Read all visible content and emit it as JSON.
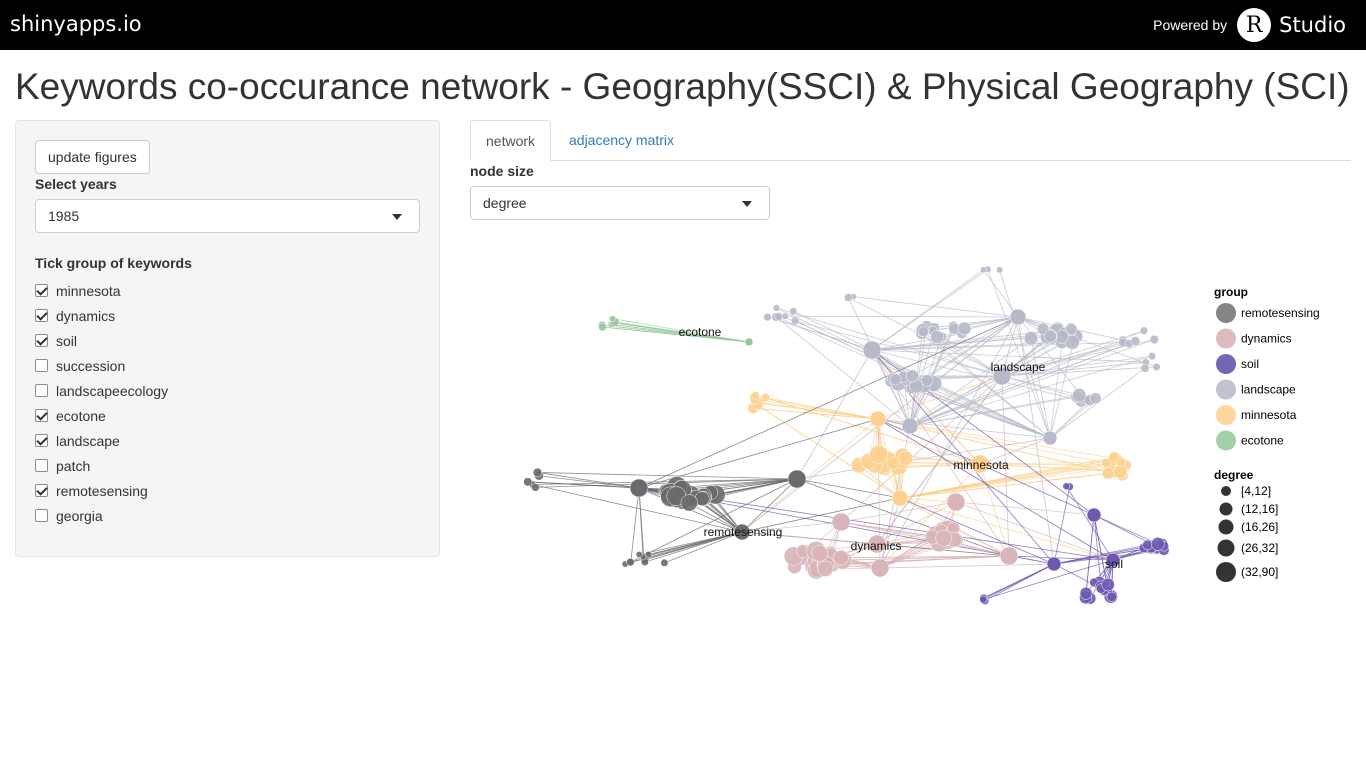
{
  "topbar": {
    "brand": "shinyapps.io",
    "powered_by": "Powered by",
    "r_logo": "R",
    "studio": "Studio"
  },
  "page": {
    "title": "Keywords co-occurance network - Geography(SSCI) & Physical Geography (SCI)"
  },
  "sidebar": {
    "update_button": "update figures",
    "years_label": "Select years",
    "years_value": "1985",
    "groups_label": "Tick group of keywords",
    "groups": [
      {
        "label": "minnesota",
        "checked": true
      },
      {
        "label": "dynamics",
        "checked": true
      },
      {
        "label": "soil",
        "checked": true
      },
      {
        "label": "succession",
        "checked": false
      },
      {
        "label": "landscapeecology",
        "checked": false
      },
      {
        "label": "ecotone",
        "checked": true
      },
      {
        "label": "landscape",
        "checked": true
      },
      {
        "label": "patch",
        "checked": false
      },
      {
        "label": "remotesensing",
        "checked": true
      },
      {
        "label": "georgia",
        "checked": false
      }
    ]
  },
  "tabs": [
    {
      "label": "network",
      "active": true
    },
    {
      "label": "adjacency matrix",
      "active": false
    }
  ],
  "node_size": {
    "label": "node size",
    "value": "degree"
  },
  "network": {
    "hub_labels": {
      "ecotone": "ecotone",
      "landscape": "landscape",
      "minnesota": "minnesota",
      "remotesensing": "remotesensing",
      "dynamics": "dynamics",
      "soil": "soil"
    },
    "colors": {
      "remotesensing": "#6a6a6a",
      "dynamics": "#d8b5b8",
      "soil": "#6d5ab0",
      "landscape": "#b7b9c9",
      "minnesota": "#fdd08e",
      "ecotone": "#98c79f"
    }
  },
  "legend": {
    "group_title": "group",
    "groups": [
      {
        "label": "remotesensing",
        "color": "#858585"
      },
      {
        "label": "dynamics",
        "color": "#dcbcbf"
      },
      {
        "label": "soil",
        "color": "#7466b5"
      },
      {
        "label": "landscape",
        "color": "#c0c2d0"
      },
      {
        "label": "minnesota",
        "color": "#fdd6a0"
      },
      {
        "label": "ecotone",
        "color": "#a3cfa9"
      }
    ],
    "degree_title": "degree",
    "degrees": [
      "[4,12]",
      "(12,16]",
      "(16,26]",
      "(26,32]",
      "(32,90]"
    ]
  }
}
